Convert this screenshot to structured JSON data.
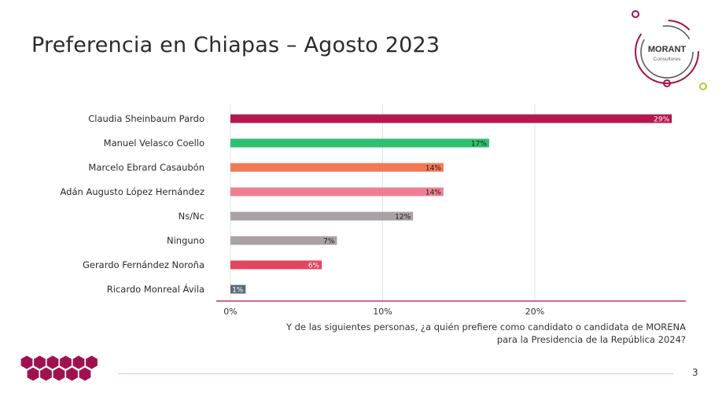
{
  "slide": {
    "title": "Preferencia en Chiapas – Agosto 2023",
    "caption": "Y de las siguientes personas, ¿a quién prefiere como candidato o candidata de MORENA para la Presidencia de la República 2024?",
    "page_number": "3",
    "logo_text": "MORANT",
    "logo_subtext": "Consultores",
    "logo_icon": "circular-logo-icon",
    "decor_icon": "hexagon-cluster-icon",
    "accent_color": "#a0124f"
  },
  "chart_data": {
    "type": "bar",
    "orientation": "horizontal",
    "categories": [
      "Claudia Sheinbaum Pardo",
      "Manuel Velasco Coello",
      "Marcelo Ebrard Casaubón",
      "Adán Augusto López Hernández",
      "Ns/Nc",
      "Ninguno",
      "Gerardo Fernández Noroña",
      "Ricardo Monreal Ávila"
    ],
    "values": [
      29,
      17,
      14,
      14,
      12,
      7,
      6,
      1
    ],
    "value_labels": [
      "29%",
      "17%",
      "14%",
      "14%",
      "12%",
      "7%",
      "6%",
      "1%"
    ],
    "colors": [
      "#b5174f",
      "#2ec071",
      "#f07a55",
      "#ee7f93",
      "#a9a1a6",
      "#a9a1a6",
      "#e4445e",
      "#5b6b78"
    ],
    "label_colors": [
      "#ffffff",
      "#1e1e1e",
      "#1e1e1e",
      "#1e1e1e",
      "#1e1e1e",
      "#1e1e1e",
      "#ffffff",
      "#ffffff"
    ],
    "xticks": [
      0,
      10,
      20
    ],
    "xtick_labels": [
      "0%",
      "10%",
      "20%"
    ],
    "xlim": [
      0,
      30
    ],
    "grid": true
  }
}
